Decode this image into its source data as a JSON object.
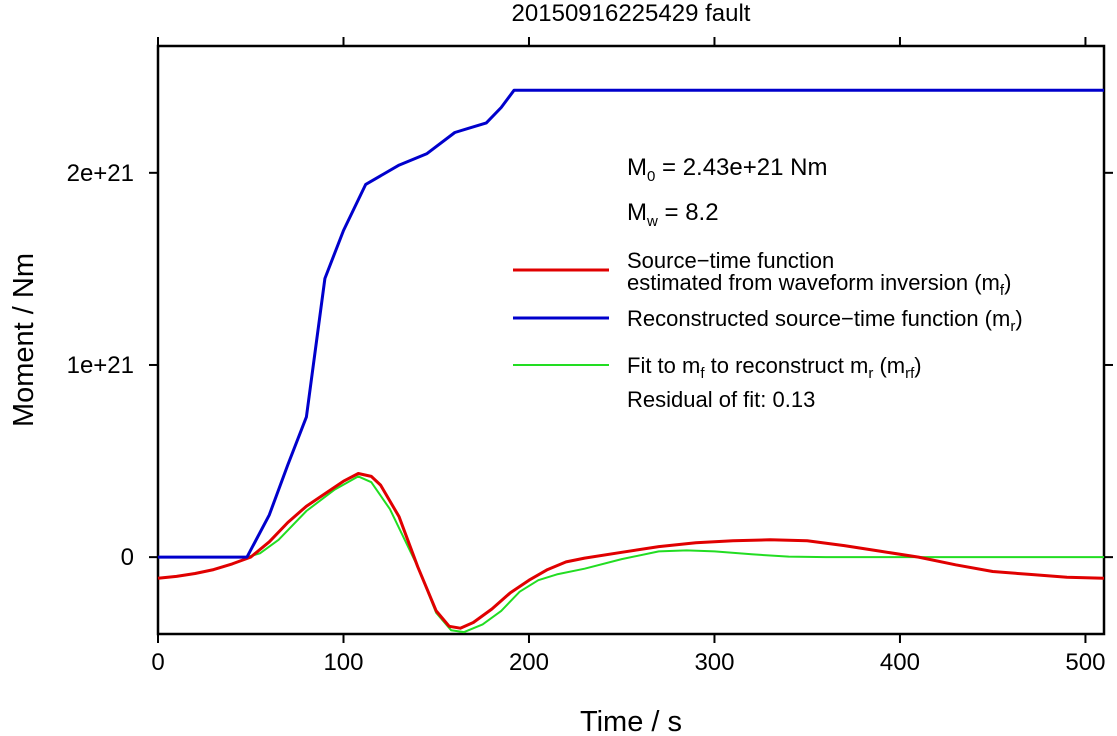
{
  "chart_data": {
    "type": "line",
    "title": "20150916225429 fault",
    "xlabel": "Time / s",
    "ylabel": "Moment / Nm",
    "xlim": [
      0,
      510
    ],
    "ylim": [
      -4e+20,
      2.66e+21
    ],
    "xticks": [
      0,
      100,
      200,
      300,
      400,
      500
    ],
    "xtick_labels": [
      "0",
      "100",
      "200",
      "300",
      "400",
      "500"
    ],
    "yticks": [
      0,
      1e+21,
      2e+21
    ],
    "ytick_labels": [
      "0",
      "1e+21",
      "2e+21"
    ],
    "grid": false,
    "legend_position": "right",
    "annotations": {
      "m0": {
        "prefix": "M",
        "sub": "0",
        "suffix": " = 2.43e+21 Nm"
      },
      "mw": {
        "prefix": "M",
        "sub": "w",
        "suffix": " = 8.2"
      },
      "residual": "Residual of fit: 0.13"
    },
    "series": [
      {
        "name": "Source-time function estimated from waveform inversion (mf)",
        "legend_line1": "Source−time function",
        "legend_line2_prefix": "estimated from waveform inversion (m",
        "legend_line2_sub": "f",
        "legend_line2_suffix": ")",
        "color": "#e00000",
        "x": [
          0,
          10,
          20,
          30,
          40,
          50,
          60,
          70,
          80,
          90,
          100,
          108,
          115,
          120,
          130,
          140,
          150,
          157,
          163,
          170,
          180,
          190,
          200,
          210,
          220,
          230,
          250,
          270,
          290,
          310,
          330,
          350,
          370,
          390,
          410,
          430,
          450,
          470,
          490,
          510
        ],
        "y": [
          -1.1e+20,
          -1e+20,
          -8.5e+19,
          -6.5e+19,
          -3.5e+19,
          0,
          8e+19,
          1.8e+20,
          2.65e+20,
          3.3e+20,
          3.95e+20,
          4.35e+20,
          4.2e+20,
          3.75e+20,
          2.1e+20,
          -5e+19,
          -2.8e+20,
          -3.6e+20,
          -3.7e+20,
          -3.4e+20,
          -2.7e+20,
          -1.85e+20,
          -1.2e+20,
          -6.5e+19,
          -2.5e+19,
          -5e+18,
          2.5e+19,
          5.5e+19,
          7.5e+19,
          8.5e+19,
          9e+19,
          8.5e+19,
          6e+19,
          3e+19,
          0,
          -4e+19,
          -7.5e+19,
          -9e+19,
          -1.05e+20,
          -1.1e+20
        ]
      },
      {
        "name": "Reconstructed source-time function (mr)",
        "legend_prefix": "Reconstructed source−time function (m",
        "legend_sub": "r",
        "legend_suffix": ")",
        "color": "#0000cc",
        "x": [
          0,
          48,
          60,
          70,
          80,
          90,
          100,
          112,
          130,
          145,
          160,
          177,
          185,
          192,
          510
        ],
        "y": [
          0,
          0,
          2.2e+20,
          4.8e+20,
          7.3e+20,
          1.45e+21,
          1.7e+21,
          1.94e+21,
          2.04e+21,
          2.1e+21,
          2.21e+21,
          2.26e+21,
          2.34e+21,
          2.43e+21,
          2.43e+21
        ]
      },
      {
        "name": "Fit to mf to reconstruct mr (mrf)",
        "legend_prefix": "Fit to m",
        "legend_sub1": "f",
        "legend_mid": " to reconstruct m",
        "legend_sub2": "r",
        "legend_mid2": " (m",
        "legend_sub3": "rf",
        "legend_suffix": ")",
        "color": "#22dd22",
        "x": [
          0,
          48,
          55,
          65,
          80,
          95,
          108,
          115,
          125,
          140,
          150,
          158,
          165,
          175,
          185,
          195,
          205,
          215,
          230,
          250,
          270,
          285,
          300,
          320,
          340,
          360,
          380,
          400,
          420,
          450,
          480,
          510
        ],
        "y": [
          0,
          0,
          2e+19,
          9e+19,
          2.4e+20,
          3.5e+20,
          4.2e+20,
          3.9e+20,
          2.5e+20,
          -5e+19,
          -2.9e+20,
          -3.8e+20,
          -3.9e+20,
          -3.5e+20,
          -2.8e+20,
          -1.8e+20,
          -1.2e+20,
          -9e+19,
          -6e+19,
          -1e+19,
          3e+19,
          3.5e+19,
          3e+19,
          1.5e+19,
          3e+18,
          0,
          0,
          0,
          0,
          0,
          0,
          0
        ]
      }
    ]
  }
}
